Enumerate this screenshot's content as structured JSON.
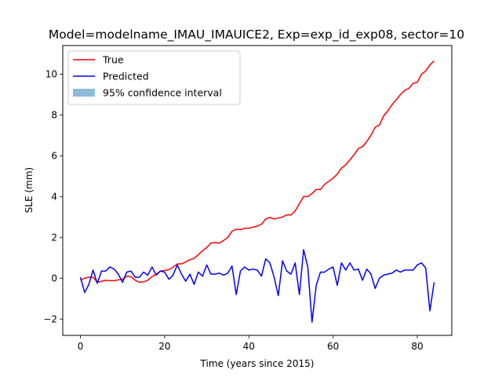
{
  "chart_data": {
    "type": "line",
    "title": "Model=modelname_IMAU_IMAUICE2, Exp=exp_id_exp08, sector=10",
    "xlabel": "Time (years since 2015)",
    "ylabel": "SLE (mm)",
    "xlim": [
      -4.2,
      88.2
    ],
    "ylim": [
      -2.8,
      11.4
    ],
    "xticks": [
      0,
      20,
      40,
      60,
      80
    ],
    "yticks": [
      -2,
      0,
      2,
      4,
      6,
      8,
      10
    ],
    "grid": false,
    "legend_position": "top-left",
    "x": [
      0,
      1,
      2,
      3,
      4,
      5,
      6,
      7,
      8,
      9,
      10,
      11,
      12,
      13,
      14,
      15,
      16,
      17,
      18,
      19,
      20,
      21,
      22,
      23,
      24,
      25,
      26,
      27,
      28,
      29,
      30,
      31,
      32,
      33,
      34,
      35,
      36,
      37,
      38,
      39,
      40,
      41,
      42,
      43,
      44,
      45,
      46,
      47,
      48,
      49,
      50,
      51,
      52,
      53,
      54,
      55,
      56,
      57,
      58,
      59,
      60,
      61,
      62,
      63,
      64,
      65,
      66,
      67,
      68,
      69,
      70,
      71,
      72,
      73,
      74,
      75,
      76,
      77,
      78,
      79,
      80,
      81,
      82,
      83,
      84
    ],
    "series": [
      {
        "name": "True",
        "color": "#ff0000",
        "values": [
          -0.1,
          0,
          0.05,
          0.05,
          -0.2,
          -0.15,
          -0.1,
          -0.12,
          -0.12,
          -0.08,
          -0.05,
          0.1,
          0.08,
          -0.1,
          -0.2,
          -0.18,
          -0.1,
          0.08,
          0.2,
          0.35,
          0.38,
          0.42,
          0.55,
          0.7,
          0.7,
          0.8,
          0.9,
          0.98,
          1.15,
          1.35,
          1.5,
          1.72,
          1.75,
          1.72,
          1.85,
          2.0,
          2.3,
          2.4,
          2.38,
          2.45,
          2.45,
          2.5,
          2.55,
          2.65,
          2.9,
          2.98,
          2.9,
          2.95,
          3.0,
          3.1,
          3.1,
          3.3,
          3.65,
          4.0,
          4.0,
          4.15,
          4.35,
          4.35,
          4.6,
          4.75,
          4.9,
          5.1,
          5.4,
          5.55,
          5.8,
          6.05,
          6.35,
          6.45,
          6.7,
          7.0,
          7.4,
          7.5,
          7.95,
          8.2,
          8.5,
          8.75,
          9.0,
          9.2,
          9.3,
          9.55,
          9.6,
          10.0,
          10.15,
          10.45,
          10.65
        ]
      },
      {
        "name": "Predicted",
        "color": "#0000ff",
        "values": [
          0.05,
          -0.7,
          -0.3,
          0.4,
          -0.25,
          0.35,
          0.35,
          0.55,
          0.45,
          0.2,
          -0.2,
          0.3,
          0.35,
          0.05,
          0.05,
          0.3,
          0.15,
          0.55,
          0.15,
          0.35,
          0.3,
          -0.05,
          0.15,
          0.65,
          0.2,
          -0.15,
          0.2,
          -0.3,
          0.3,
          0.1,
          0.65,
          0.2,
          0.2,
          0.25,
          0.15,
          0.25,
          0.6,
          -0.8,
          0.35,
          0.55,
          0.4,
          0.45,
          0.4,
          0.1,
          0.95,
          0.75,
          0.05,
          -0.85,
          0.85,
          0.35,
          0.2,
          0.75,
          -0.8,
          1.4,
          0.55,
          -2.15,
          -0.35,
          0.3,
          0.3,
          0.45,
          0.55,
          -0.35,
          0.75,
          0.4,
          0.75,
          0.4,
          0.45,
          -0.1,
          0.45,
          0.2,
          -0.5,
          0.0,
          0.15,
          0.2,
          0.25,
          0.4,
          0.3,
          0.4,
          0.4,
          0.4,
          0.65,
          0.75,
          0.5,
          -1.6,
          -0.2
        ]
      }
    ],
    "ci": {
      "name": "95% confidence interval",
      "color": "#8fbbd9"
    }
  }
}
